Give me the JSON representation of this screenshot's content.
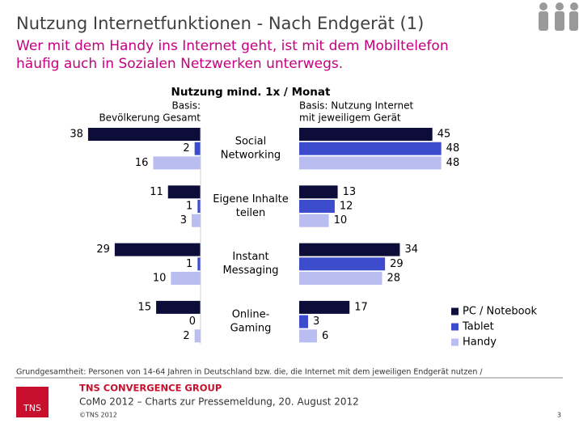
{
  "header": {
    "title": "Nutzung Internetfunktionen - Nach Endgerät (1)",
    "subtitle": [
      "Wer mit dem Handy ins Internet geht, ist mit dem Mobiltelefon",
      "häufig auch in Sozialen Netzwerken unterwegs."
    ]
  },
  "chart_data": {
    "type": "bar",
    "title": "Nutzung mind. 1x / Monat",
    "left_label": [
      "Basis:",
      "Bevölkerung Gesamt"
    ],
    "right_label": [
      "Basis: Nutzung Internet",
      "mit jeweiligem Gerät"
    ],
    "categories": [
      [
        "Social",
        "Networking"
      ],
      [
        "Eigene Inhalte",
        "teilen"
      ],
      [
        "Instant",
        "Messaging"
      ],
      [
        "Online-",
        "Gaming"
      ]
    ],
    "series": [
      {
        "name": "PC / Notebook",
        "color": "#0d0d3a",
        "left": [
          38,
          11,
          29,
          15
        ],
        "right": [
          45,
          13,
          34,
          17
        ]
      },
      {
        "name": "Tablet",
        "color": "#3c4ccc",
        "left": [
          2,
          1,
          1,
          0
        ],
        "right": [
          48,
          12,
          29,
          3
        ]
      },
      {
        "name": "Handy",
        "color": "#b9bdf0",
        "left": [
          16,
          3,
          10,
          2
        ],
        "right": [
          48,
          10,
          28,
          6
        ]
      }
    ]
  },
  "footnote": "Grundgesamtheit: Personen von 14-64 Jahren in Deutschland bzw. die, die Internet mit dem jeweiligen Endgerät nutzen /",
  "footer": {
    "logo": "TNS",
    "company": "TNS CONVERGENCE GROUP",
    "event": "CoMo 2012 – Charts zur Pressemeldung, 20. August 2012",
    "copyright": "©TNS 2012",
    "page": "3"
  }
}
